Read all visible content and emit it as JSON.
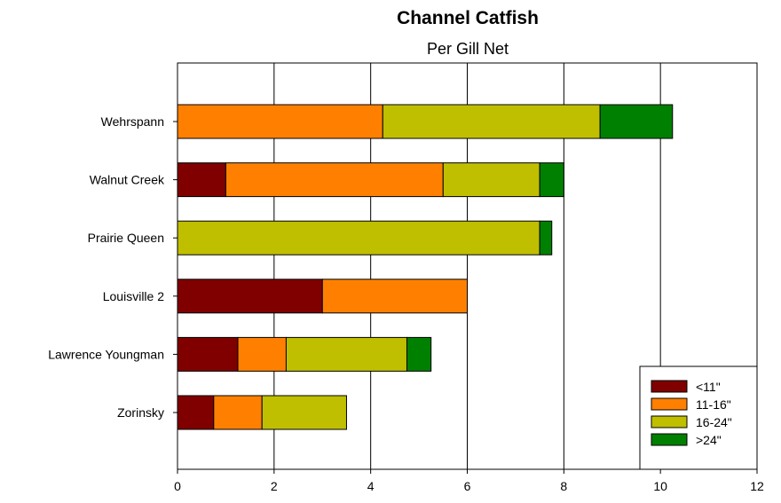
{
  "chart_data": {
    "type": "bar",
    "orientation": "horizontal",
    "stacked": true,
    "title": "Channel Catfish",
    "subtitle": "Per Gill Net",
    "xlabel": "",
    "ylabel": "",
    "xlim": [
      0,
      12
    ],
    "xticks": [
      "0",
      "2",
      "4",
      "6",
      "8",
      "10",
      "12"
    ],
    "grid": "vertical",
    "legend_position": "bottom-right",
    "categories": [
      "Wehrspann",
      "Walnut Creek",
      "Prairie Queen",
      "Louisville 2",
      "Lawrence Youngman",
      "Zorinsky"
    ],
    "series": [
      {
        "name": "<11\"",
        "color": "#800000",
        "values": [
          0,
          1.0,
          0,
          3.0,
          1.25,
          0.75
        ]
      },
      {
        "name": "11-16\"",
        "color": "#ff8000",
        "values": [
          4.25,
          4.5,
          0,
          3.0,
          1.0,
          1.0
        ]
      },
      {
        "name": "16-24\"",
        "color": "#bfbf00",
        "values": [
          4.5,
          2.0,
          7.5,
          0,
          2.5,
          1.75
        ]
      },
      {
        "name": ">24\"",
        "color": "#008000",
        "values": [
          1.5,
          0.5,
          0.25,
          0,
          0.5,
          0
        ]
      }
    ]
  }
}
